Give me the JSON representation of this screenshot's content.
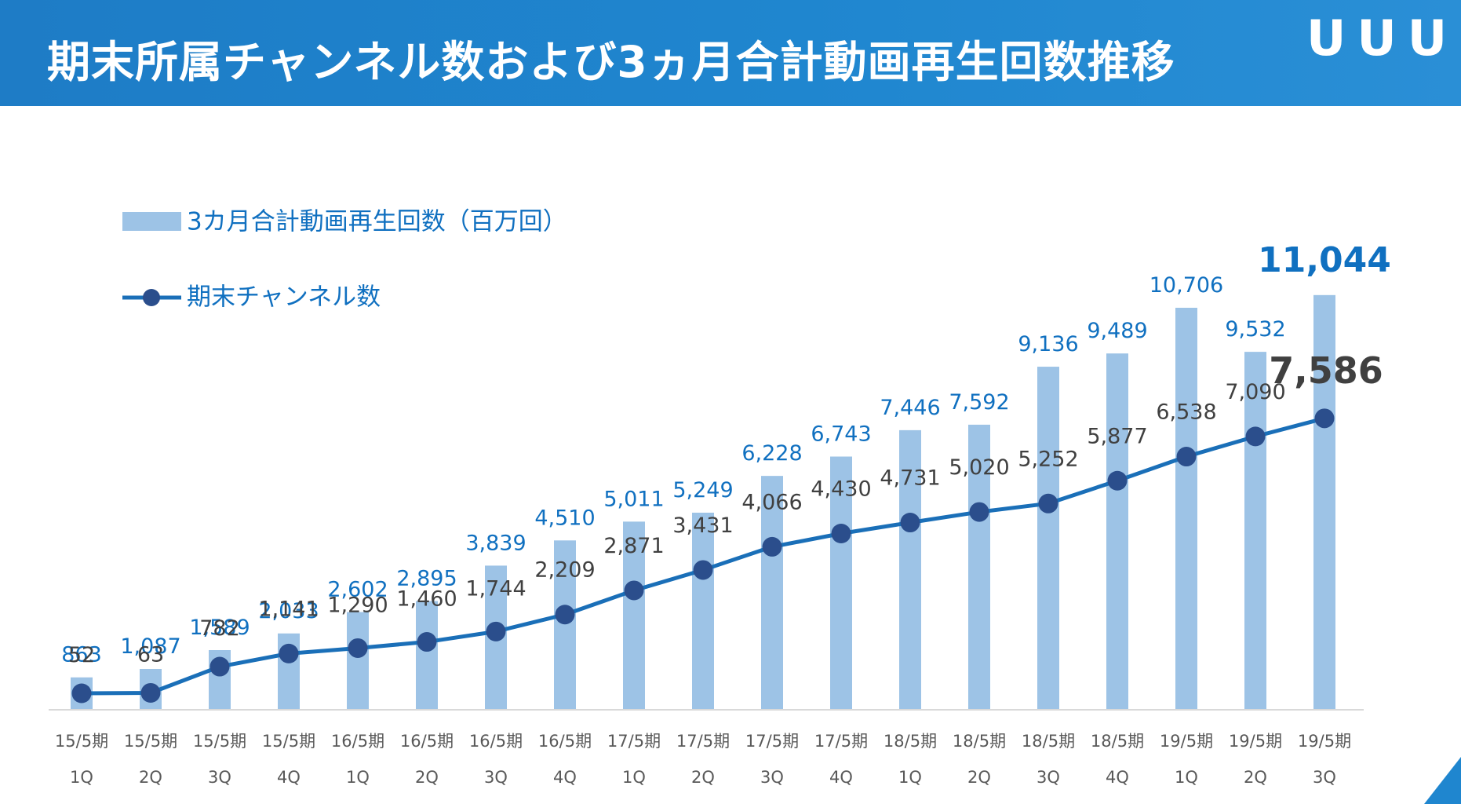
{
  "header": {
    "title": "期末所属チャンネル数および3ヵ月合計動画再生回数推移",
    "logo": "UUUM"
  },
  "colors": {
    "header_bg": "#1f86cf",
    "bar": "#9dc3e6",
    "bar_label": "#1070c0",
    "line": "#1a6fb8",
    "marker": "#2b4e8c",
    "line_label": "#404040",
    "axis": "#d9d9d9"
  },
  "chart_data": {
    "type": "bar",
    "title": "",
    "categories": [
      {
        "period": "15/5期",
        "quarter": "1Q"
      },
      {
        "period": "15/5期",
        "quarter": "2Q"
      },
      {
        "period": "15/5期",
        "quarter": "3Q"
      },
      {
        "period": "15/5期",
        "quarter": "4Q"
      },
      {
        "period": "16/5期",
        "quarter": "1Q"
      },
      {
        "period": "16/5期",
        "quarter": "2Q"
      },
      {
        "period": "16/5期",
        "quarter": "3Q"
      },
      {
        "period": "16/5期",
        "quarter": "4Q"
      },
      {
        "period": "17/5期",
        "quarter": "1Q"
      },
      {
        "period": "17/5期",
        "quarter": "2Q"
      },
      {
        "period": "17/5期",
        "quarter": "3Q"
      },
      {
        "period": "17/5期",
        "quarter": "4Q"
      },
      {
        "period": "18/5期",
        "quarter": "1Q"
      },
      {
        "period": "18/5期",
        "quarter": "2Q"
      },
      {
        "period": "18/5期",
        "quarter": "3Q"
      },
      {
        "period": "18/5期",
        "quarter": "4Q"
      },
      {
        "period": "19/5期",
        "quarter": "1Q"
      },
      {
        "period": "19/5期",
        "quarter": "2Q"
      },
      {
        "period": "19/5期",
        "quarter": "3Q"
      }
    ],
    "series": [
      {
        "name": "3カ月合計動画再生回数（百万回）",
        "type": "bar",
        "values": [
          863,
          1087,
          1589,
          2033,
          2602,
          2895,
          3839,
          4510,
          5011,
          5249,
          6228,
          6743,
          7446,
          7592,
          9136,
          9489,
          10706,
          9532,
          11044
        ],
        "labels": [
          "863",
          "1,087",
          "1,589",
          "2,033",
          "2,602",
          "2,895",
          "3,839",
          "4,510",
          "5,011",
          "5,249",
          "6,228",
          "6,743",
          "7,446",
          "7,592",
          "9,136",
          "9,489",
          "10,706",
          "9,532",
          "11,044"
        ]
      },
      {
        "name": "期末チャンネル数",
        "type": "line",
        "values": [
          52,
          63,
          782,
          1141,
          1290,
          1460,
          1744,
          2209,
          2871,
          3431,
          4066,
          4430,
          4731,
          5020,
          5252,
          5877,
          6538,
          7090,
          7586
        ],
        "labels": [
          "52",
          "63",
          "782",
          "1,141",
          "1,290",
          "1,460",
          "1,744",
          "2,209",
          "2,871",
          "3,431",
          "4,066",
          "4,430",
          "4,731",
          "5,020",
          "5,252",
          "5,877",
          "6,538",
          "7,090",
          "7,586"
        ]
      }
    ],
    "bar_ylim": [
      0,
      13800
    ],
    "line_ylim": [
      -400,
      13800
    ],
    "legend_position": "top-left"
  }
}
